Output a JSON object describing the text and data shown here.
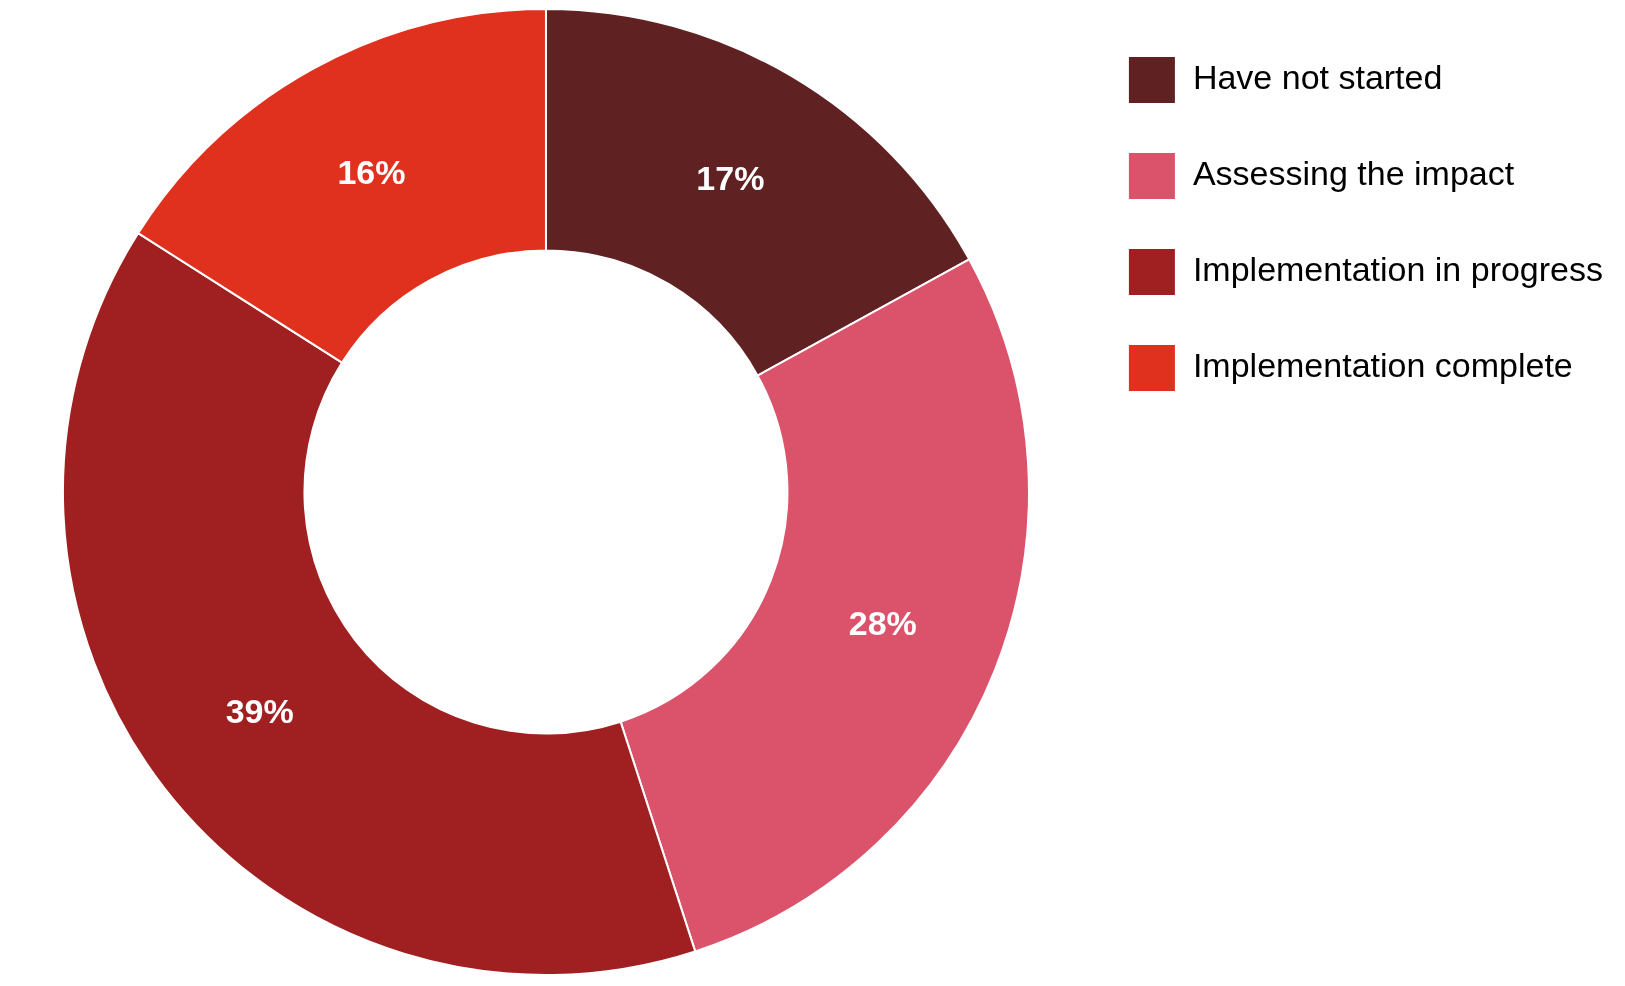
{
  "chart_data": {
    "type": "donut",
    "categories": [
      "Have not started",
      "Assessing the impact",
      "Implementation in progress",
      "Implementation complete"
    ],
    "values": [
      17,
      28,
      39,
      16
    ],
    "colors": [
      "#5f2121",
      "#db526b",
      "#a01f20",
      "#e0301e"
    ],
    "value_labels": [
      "17%",
      "28%",
      "39%",
      "16%"
    ],
    "legend": "top right"
  }
}
